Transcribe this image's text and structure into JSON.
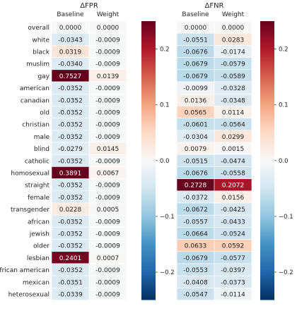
{
  "chart_data": {
    "type": "heatmap",
    "rows": [
      "overall",
      "white",
      "black",
      "muslim",
      "gay",
      "american",
      "canadian",
      "old",
      "christian",
      "male",
      "blind",
      "catholic",
      "homosexual",
      "straight",
      "female",
      "transgender",
      "african",
      "jewish",
      "older",
      "lesbian",
      "african american",
      "mexican",
      "heterosexual"
    ],
    "columns": [
      "Baseline",
      "Weight"
    ],
    "panels": [
      {
        "title": "ΔFPR",
        "values": [
          [
            0.0,
            0.0
          ],
          [
            -0.0343,
            -0.0009
          ],
          [
            0.0319,
            -0.0009
          ],
          [
            -0.034,
            -0.0009
          ],
          [
            0.7527,
            0.0139
          ],
          [
            -0.0352,
            -0.0009
          ],
          [
            -0.0352,
            -0.0009
          ],
          [
            -0.0352,
            -0.0009
          ],
          [
            -0.0352,
            -0.0009
          ],
          [
            -0.0352,
            -0.0009
          ],
          [
            -0.0279,
            0.0145
          ],
          [
            -0.0352,
            -0.0009
          ],
          [
            0.3891,
            0.0067
          ],
          [
            -0.0352,
            -0.0009
          ],
          [
            -0.0352,
            -0.0009
          ],
          [
            0.0228,
            0.0005
          ],
          [
            -0.0352,
            -0.0009
          ],
          [
            -0.0352,
            -0.0009
          ],
          [
            -0.0352,
            -0.0009
          ],
          [
            0.2401,
            0.0007
          ],
          [
            -0.0352,
            -0.0009
          ],
          [
            -0.0351,
            -0.0009
          ],
          [
            -0.0339,
            -0.0009
          ]
        ],
        "vmin": -0.25,
        "vmax": 0.25,
        "colorbar_ticks": [
          0.2,
          0.1,
          0.0,
          -0.1,
          -0.2
        ],
        "colorbar_tick_labels": [
          "0.2",
          "0.1",
          "0.0",
          "−0.1",
          "−0.2"
        ]
      },
      {
        "title": "ΔFNR",
        "values": [
          [
            0.0,
            0.0
          ],
          [
            -0.0551,
            0.0283
          ],
          [
            -0.0676,
            -0.0174
          ],
          [
            -0.0679,
            -0.0579
          ],
          [
            -0.0679,
            -0.0589
          ],
          [
            -0.0099,
            -0.0328
          ],
          [
            0.0136,
            -0.0348
          ],
          [
            0.0565,
            0.0114
          ],
          [
            -0.0601,
            -0.0564
          ],
          [
            -0.0304,
            0.0299
          ],
          [
            0.0079,
            0.0015
          ],
          [
            -0.0515,
            -0.0474
          ],
          [
            -0.0676,
            -0.0558
          ],
          [
            0.2728,
            0.2072
          ],
          [
            -0.0372,
            0.0156
          ],
          [
            -0.0672,
            -0.0425
          ],
          [
            -0.0557,
            -0.0433
          ],
          [
            -0.0664,
            -0.0524
          ],
          [
            0.0633,
            0.0592
          ],
          [
            -0.0679,
            -0.0577
          ],
          [
            -0.0553,
            -0.0397
          ],
          [
            -0.0408,
            -0.0373
          ],
          [
            -0.0547,
            -0.0114
          ]
        ],
        "vmin": -0.25,
        "vmax": 0.25,
        "colorbar_ticks": [
          0.2,
          0.1,
          0.0,
          -0.1,
          -0.2
        ],
        "colorbar_tick_labels": [
          "0.2",
          "0.1",
          "0.0",
          "−0.1",
          "−0.2"
        ]
      }
    ],
    "colormap": "RdBu_r",
    "colors": {
      "low": "#053061",
      "mid": "#f7f7f7",
      "high": "#67001f"
    }
  }
}
